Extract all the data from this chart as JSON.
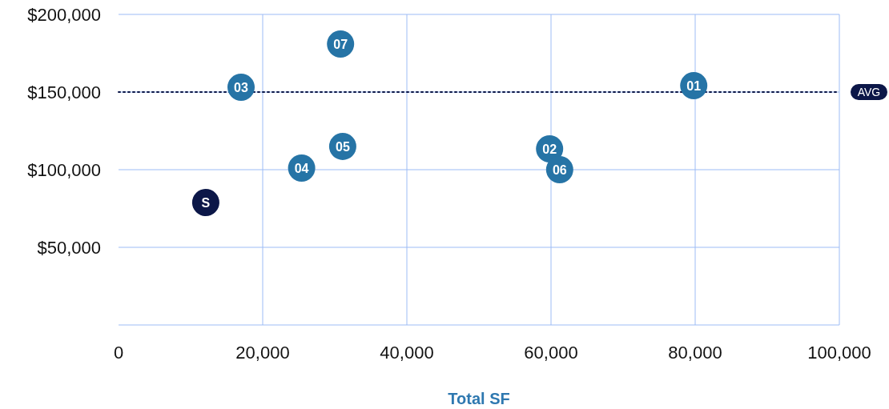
{
  "chart_data": {
    "type": "scatter",
    "xlabel": "Total SF",
    "x": [
      79800,
      59800,
      17000,
      25400,
      31100,
      61200,
      30800,
      12100
    ],
    "values": [
      154100,
      113400,
      153100,
      101000,
      115000,
      100000,
      180900,
      78900
    ],
    "colors": [
      "#2674a6",
      "#2674a6",
      "#2674a6",
      "#2674a6",
      "#2674a6",
      "#2674a6",
      "#2674a6",
      "#0c1748"
    ],
    "marker": "circle",
    "annotations": [
      {
        "text": "01",
        "x": 79800,
        "y": 154100
      },
      {
        "text": "02",
        "x": 59800,
        "y": 113400
      },
      {
        "text": "03",
        "x": 17000,
        "y": 153100
      },
      {
        "text": "04",
        "x": 25400,
        "y": 101000
      },
      {
        "text": "05",
        "x": 31100,
        "y": 115000
      },
      {
        "text": "06",
        "x": 61200,
        "y": 100000
      },
      {
        "text": "07",
        "x": 30800,
        "y": 180900
      },
      {
        "text": "S",
        "x": 12100,
        "y": 78900
      }
    ],
    "xlim": [
      0,
      100000
    ],
    "xticks": [
      {
        "value": 0,
        "label": "0"
      },
      {
        "value": 20000,
        "label": "20,000"
      },
      {
        "value": 40000,
        "label": "40,000"
      },
      {
        "value": 60000,
        "label": "60,000"
      },
      {
        "value": 80000,
        "label": "80,000"
      },
      {
        "value": 100000,
        "label": "100,000"
      }
    ],
    "ylim": [
      0,
      200000
    ],
    "yticks": [
      {
        "value": 50000,
        "label": "$50,000"
      },
      {
        "value": 100000,
        "label": "$100,000"
      },
      {
        "value": 150000,
        "label": "$150,000"
      },
      {
        "value": 200000,
        "label": "$200,000"
      }
    ],
    "grid": true,
    "ref_lines": [
      {
        "axis": "y",
        "value": 150000,
        "label": "AVG",
        "color": "#0c1748",
        "line_style": "dotted"
      }
    ]
  }
}
